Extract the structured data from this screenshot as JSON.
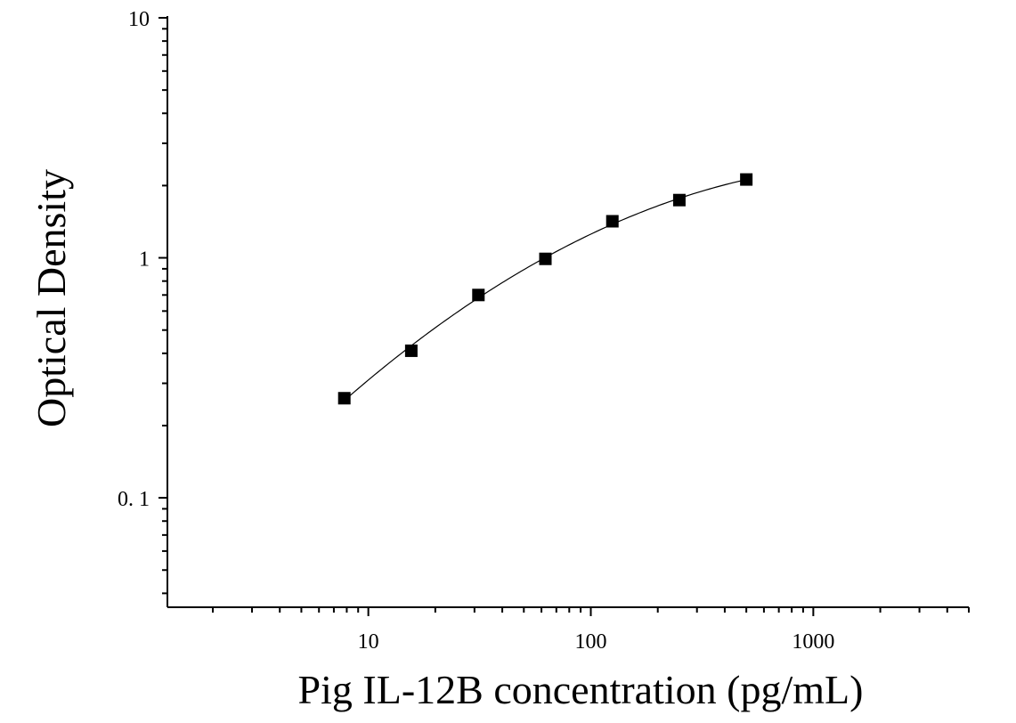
{
  "chart_data": {
    "type": "scatter",
    "title": "",
    "xlabel": "Pig IL-12B concentration (pg/mL)",
    "ylabel": "Optical Density",
    "x_scale": "log",
    "y_scale": "log",
    "xlim": [
      1.25,
      5000
    ],
    "ylim": [
      0.035,
      10
    ],
    "grid": false,
    "x_ticks": [
      {
        "value": 10,
        "label": "10"
      },
      {
        "value": 100,
        "label": "100"
      },
      {
        "value": 1000,
        "label": "1000"
      }
    ],
    "y_ticks": [
      {
        "value": 10,
        "label": "10"
      },
      {
        "value": 1,
        "label": "1"
      },
      {
        "value": 0.1,
        "label": "0. 1"
      }
    ],
    "series": [
      {
        "marker": "square",
        "color": "#000000",
        "fit_line": true,
        "x": [
          7.8,
          15.6,
          31.25,
          62.5,
          125,
          250,
          500
        ],
        "y": [
          0.26,
          0.41,
          0.7,
          0.99,
          1.42,
          1.74,
          2.12
        ]
      }
    ]
  }
}
